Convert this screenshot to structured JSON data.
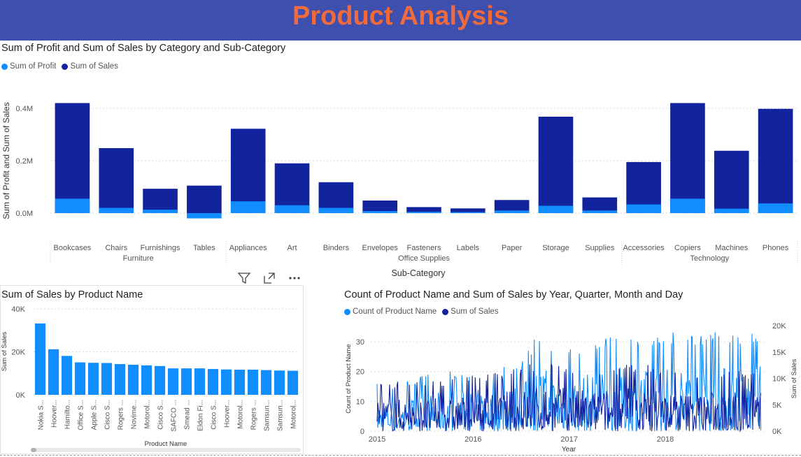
{
  "page": {
    "title": "Product Analysis"
  },
  "colors": {
    "banner_bg": "#3f4fad",
    "title_color": "#ef6a3c",
    "profit": "#118dff",
    "sales": "#12239e"
  },
  "chart1": {
    "title": "Sum of Profit and Sum of Sales by Category and Sub-Category",
    "legend": [
      "Sum of Profit",
      "Sum of Sales"
    ],
    "ylabel": "Sum of Profit and Sum of Sales",
    "xlabel": "Sub-Category",
    "yticks": [
      "0.0M",
      "0.2M",
      "0.4M"
    ]
  },
  "chart2": {
    "title": "Sum of Sales by Product Name",
    "ylabel": "Sum of Sales",
    "xlabel": "Product Name",
    "yticks": [
      "0K",
      "20K",
      "40K"
    ]
  },
  "chart3": {
    "title": "Count of Product Name and Sum of Sales by Year, Quarter, Month and Day",
    "legend": [
      "Count of Product Name",
      "Sum of Sales"
    ],
    "ylabel_left": "Count of Product Name",
    "ylabel_right": "Sum of Sales",
    "xlabel": "Year",
    "yticks_left": [
      "0",
      "10",
      "20",
      "30"
    ],
    "yticks_right": [
      "0K",
      "5K",
      "10K",
      "15K",
      "20K"
    ],
    "xticks": [
      "2015",
      "2016",
      "2017",
      "2018"
    ]
  },
  "chart_data": [
    {
      "type": "bar",
      "title": "Sum of Profit and Sum of Sales by Category and Sub-Category",
      "xlabel": "Sub-Category",
      "ylabel": "Sum of Profit and Sum of Sales",
      "ylim": [
        -0.03,
        0.45
      ],
      "unit": "M",
      "grid": true,
      "legend_position": "top-left",
      "groups": [
        {
          "name": "Furniture",
          "categories": [
            "Bookcases",
            "Chairs",
            "Furnishings",
            "Tables"
          ]
        },
        {
          "name": "Office Supplies",
          "categories": [
            "Appliances",
            "Art",
            "Binders",
            "Envelopes",
            "Fasteners",
            "Labels",
            "Paper",
            "Storage",
            "Supplies"
          ]
        },
        {
          "name": "Technology",
          "categories": [
            "Accessories",
            "Copiers",
            "Machines",
            "Phones"
          ]
        }
      ],
      "categories": [
        "Bookcases",
        "Chairs",
        "Furnishings",
        "Tables",
        "Appliances",
        "Art",
        "Binders",
        "Envelopes",
        "Fasteners",
        "Labels",
        "Paper",
        "Storage",
        "Supplies",
        "Accessories",
        "Copiers",
        "Machines",
        "Phones"
      ],
      "series": [
        {
          "name": "Sum of Profit",
          "values": [
            0.055,
            0.02,
            0.013,
            -0.02,
            0.045,
            0.03,
            0.02,
            0.008,
            0.005,
            0.004,
            0.01,
            0.028,
            0.01,
            0.033,
            0.055,
            0.017,
            0.037
          ]
        },
        {
          "name": "Sum of Sales",
          "values": [
            0.42,
            0.248,
            0.093,
            0.105,
            0.322,
            0.19,
            0.118,
            0.048,
            0.023,
            0.018,
            0.05,
            0.368,
            0.06,
            0.195,
            0.42,
            0.238,
            0.398
          ]
        }
      ]
    },
    {
      "type": "bar",
      "title": "Sum of Sales by Product Name",
      "xlabel": "Product Name",
      "ylabel": "Sum of Sales",
      "ylim": [
        0,
        40000
      ],
      "grid": true,
      "categories": [
        "Nokia S...",
        "Hoover...",
        "Hamilto...",
        "Office S...",
        "Apple S...",
        "Cisco S...",
        "Rogers ...",
        "Novime...",
        "Motorol...",
        "Cisco S...",
        "SAFCO ...",
        "Smead ...",
        "Eldon Fi...",
        "Cisco S...",
        "Hoover...",
        "Motorol...",
        "Rogers ...",
        "Samsun...",
        "Samsun...",
        "Motorol..."
      ],
      "values": [
        33200,
        21200,
        18100,
        15100,
        14900,
        14800,
        14300,
        14000,
        13700,
        13400,
        12300,
        12300,
        12300,
        12000,
        11800,
        11700,
        11700,
        11500,
        11300,
        11200
      ]
    },
    {
      "type": "line",
      "title": "Count of Product Name and Sum of Sales by Year, Quarter, Month and Day",
      "xlabel": "Year",
      "xticks": [
        "2015",
        "2016",
        "2017",
        "2018"
      ],
      "legend_position": "top-left",
      "series": [
        {
          "name": "Count of Product Name",
          "axis": "left",
          "ylim": [
            0,
            35
          ],
          "peak_values": [
            [
              2015.2,
              16
            ],
            [
              2015.5,
              19
            ],
            [
              2015.8,
              21
            ],
            [
              2016.2,
              22
            ],
            [
              2016.5,
              24
            ],
            [
              2016.7,
              35
            ],
            [
              2016.9,
              27
            ],
            [
              2017.2,
              30
            ],
            [
              2017.5,
              33
            ],
            [
              2017.8,
              32
            ],
            [
              2018.2,
              34
            ],
            [
              2018.5,
              34
            ],
            [
              2018.8,
              34
            ]
          ]
        },
        {
          "name": "Sum of Sales",
          "axis": "right",
          "ylim": [
            0,
            21000
          ],
          "peak_values": [
            [
              2015.5,
              9500
            ],
            [
              2016.2,
              11000
            ],
            [
              2016.7,
              13500
            ],
            [
              2017.2,
              12000
            ],
            [
              2017.7,
              13000
            ],
            [
              2018.2,
              11500
            ],
            [
              2018.7,
              12000
            ]
          ]
        }
      ]
    }
  ]
}
